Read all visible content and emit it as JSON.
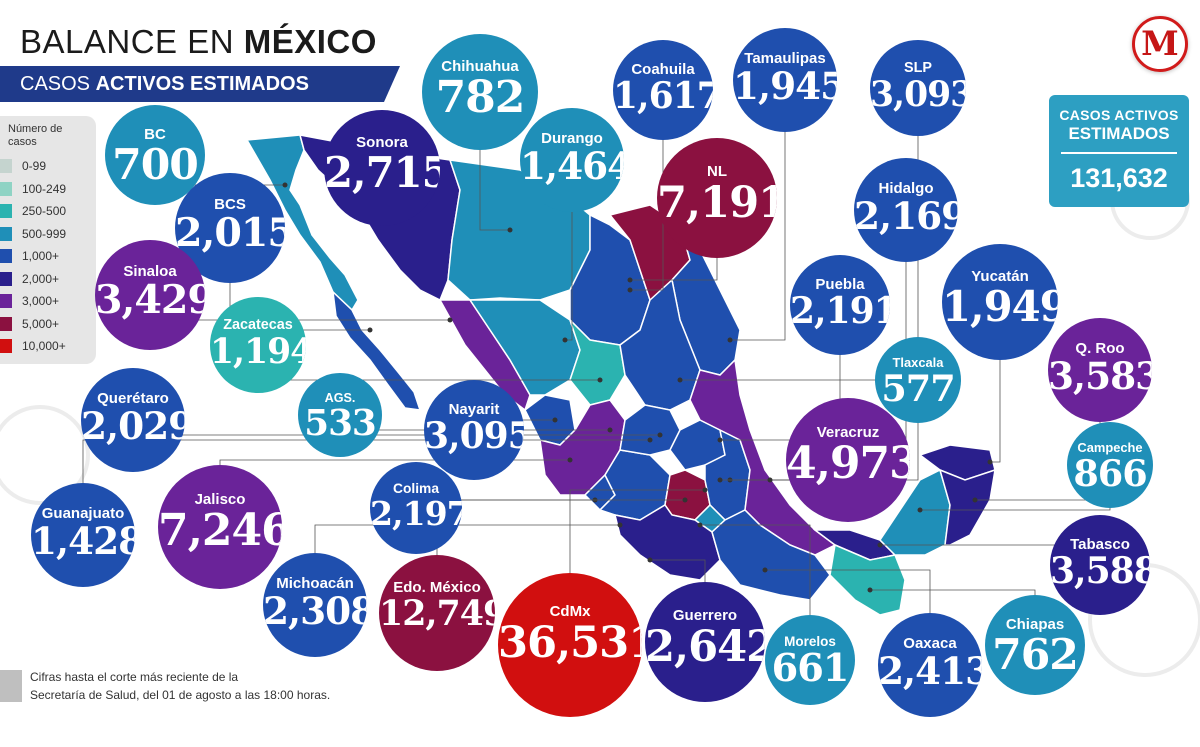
{
  "header": {
    "title_light": "BALANCE EN",
    "title_bold": "MÉXICO",
    "subtitle_light": "CASOS",
    "subtitle_bold": "ACTIVOS ESTIMADOS"
  },
  "logo": {
    "letter": "M"
  },
  "total": {
    "label_line1": "CASOS ACTIVOS",
    "label_line2": "ESTIMADOS",
    "value": "131,632"
  },
  "legend": {
    "title": "Número de casos",
    "items": [
      {
        "label": "0-99",
        "color": "#c5d4cf"
      },
      {
        "label": "100-249",
        "color": "#8fd3c4"
      },
      {
        "label": "250-500",
        "color": "#2bb3b0"
      },
      {
        "label": "500-999",
        "color": "#1f8fb8"
      },
      {
        "label": "1,000+",
        "color": "#1f4fae"
      },
      {
        "label": "2,000+",
        "color": "#2a1f8c"
      },
      {
        "label": "3,000+",
        "color": "#6a2399"
      },
      {
        "label": "5,000+",
        "color": "#8b1140"
      },
      {
        "label": "10,000+",
        "color": "#d10f0f"
      }
    ]
  },
  "note": {
    "line1": "Cifras hasta el corte más reciente de la",
    "line2": "Secretaría de Salud, del 01 de agosto a las 18:00 horas."
  },
  "states": [
    {
      "name": "BC",
      "value": "700",
      "color": "#1f8fb8"
    },
    {
      "name": "Sonora",
      "value": "2,715",
      "color": "#2a1f8c"
    },
    {
      "name": "Chihuahua",
      "value": "782",
      "color": "#1f8fb8"
    },
    {
      "name": "Coahuila",
      "value": "1,617",
      "color": "#1f4fae"
    },
    {
      "name": "Tamaulipas",
      "value": "1,945",
      "color": "#1f4fae"
    },
    {
      "name": "SLP",
      "value": "3,093",
      "color": "#1f4fae"
    },
    {
      "name": "Durango",
      "value": "1,464",
      "color": "#1f8fb8"
    },
    {
      "name": "NL",
      "value": "7,191",
      "color": "#8b1140"
    },
    {
      "name": "Hidalgo",
      "value": "2,169",
      "color": "#1f4fae"
    },
    {
      "name": "BCS",
      "value": "2,015",
      "color": "#1f4fae"
    },
    {
      "name": "Sinaloa",
      "value": "3,429",
      "color": "#6a2399"
    },
    {
      "name": "Zacatecas",
      "value": "1,194",
      "color": "#2bb3b0"
    },
    {
      "name": "Puebla",
      "value": "2,191",
      "color": "#1f4fae"
    },
    {
      "name": "Yucatán",
      "value": "1,949",
      "color": "#1f4fae"
    },
    {
      "name": "Q. Roo",
      "value": "3,583",
      "color": "#6a2399"
    },
    {
      "name": "Tlaxcala",
      "value": "577",
      "color": "#1f8fb8"
    },
    {
      "name": "Querétaro",
      "value": "2,029",
      "color": "#1f4fae"
    },
    {
      "name": "AGS.",
      "value": "533",
      "color": "#1f8fb8"
    },
    {
      "name": "Nayarit",
      "value": "3,095",
      "color": "#1f4fae"
    },
    {
      "name": "Veracruz",
      "value": "4,973",
      "color": "#6a2399"
    },
    {
      "name": "Campeche",
      "value": "866",
      "color": "#1f8fb8"
    },
    {
      "name": "Colima",
      "value": "2,197",
      "color": "#1f4fae"
    },
    {
      "name": "Guanajuato",
      "value": "1,428",
      "color": "#1f4fae"
    },
    {
      "name": "Jalisco",
      "value": "7,246",
      "color": "#6a2399"
    },
    {
      "name": "Tabasco",
      "value": "3,588",
      "color": "#2a1f8c"
    },
    {
      "name": "Michoacán",
      "value": "2,308",
      "color": "#1f4fae"
    },
    {
      "name": "Edo. México",
      "value": "12,749",
      "color": "#8b1140"
    },
    {
      "name": "CdMx",
      "value": "36,531",
      "color": "#d10f0f"
    },
    {
      "name": "Guerrero",
      "value": "2,642",
      "color": "#2a1f8c"
    },
    {
      "name": "Morelos",
      "value": "661",
      "color": "#1f8fb8"
    },
    {
      "name": "Oaxaca",
      "value": "2,413",
      "color": "#1f4fae"
    },
    {
      "name": "Chiapas",
      "value": "762",
      "color": "#1f8fb8"
    }
  ]
}
